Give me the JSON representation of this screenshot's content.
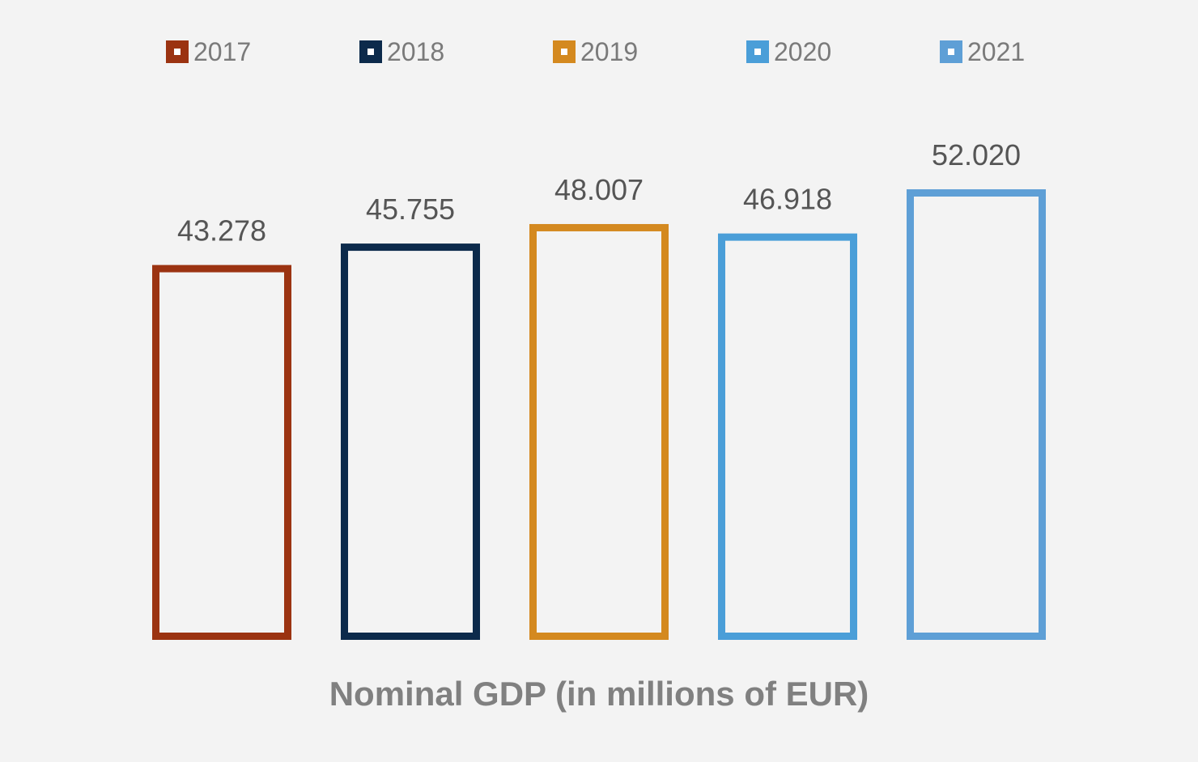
{
  "chart_data": {
    "type": "bar",
    "bar_style": "outlined",
    "background": "#f3f3f3",
    "categories": [
      "2017",
      "2018",
      "2019",
      "2020",
      "2021"
    ],
    "series": [
      {
        "name": "2017",
        "color": "#9b3311",
        "value": 43278,
        "label": "43.278"
      },
      {
        "name": "2018",
        "color": "#0c2a4b",
        "value": 45755,
        "label": "45.755"
      },
      {
        "name": "2019",
        "color": "#d4891f",
        "value": 48007,
        "label": "48.007"
      },
      {
        "name": "2020",
        "color": "#4a9ed8",
        "value": 46918,
        "label": "46.918"
      },
      {
        "name": "2021",
        "color": "#5e9fd6",
        "value": 52020,
        "label": "52.020"
      }
    ],
    "xlabel": "Nominal GDP (in millions of EUR)",
    "ylabel": "",
    "ylim": [
      0,
      52020
    ],
    "grid": false,
    "legend": "top"
  }
}
